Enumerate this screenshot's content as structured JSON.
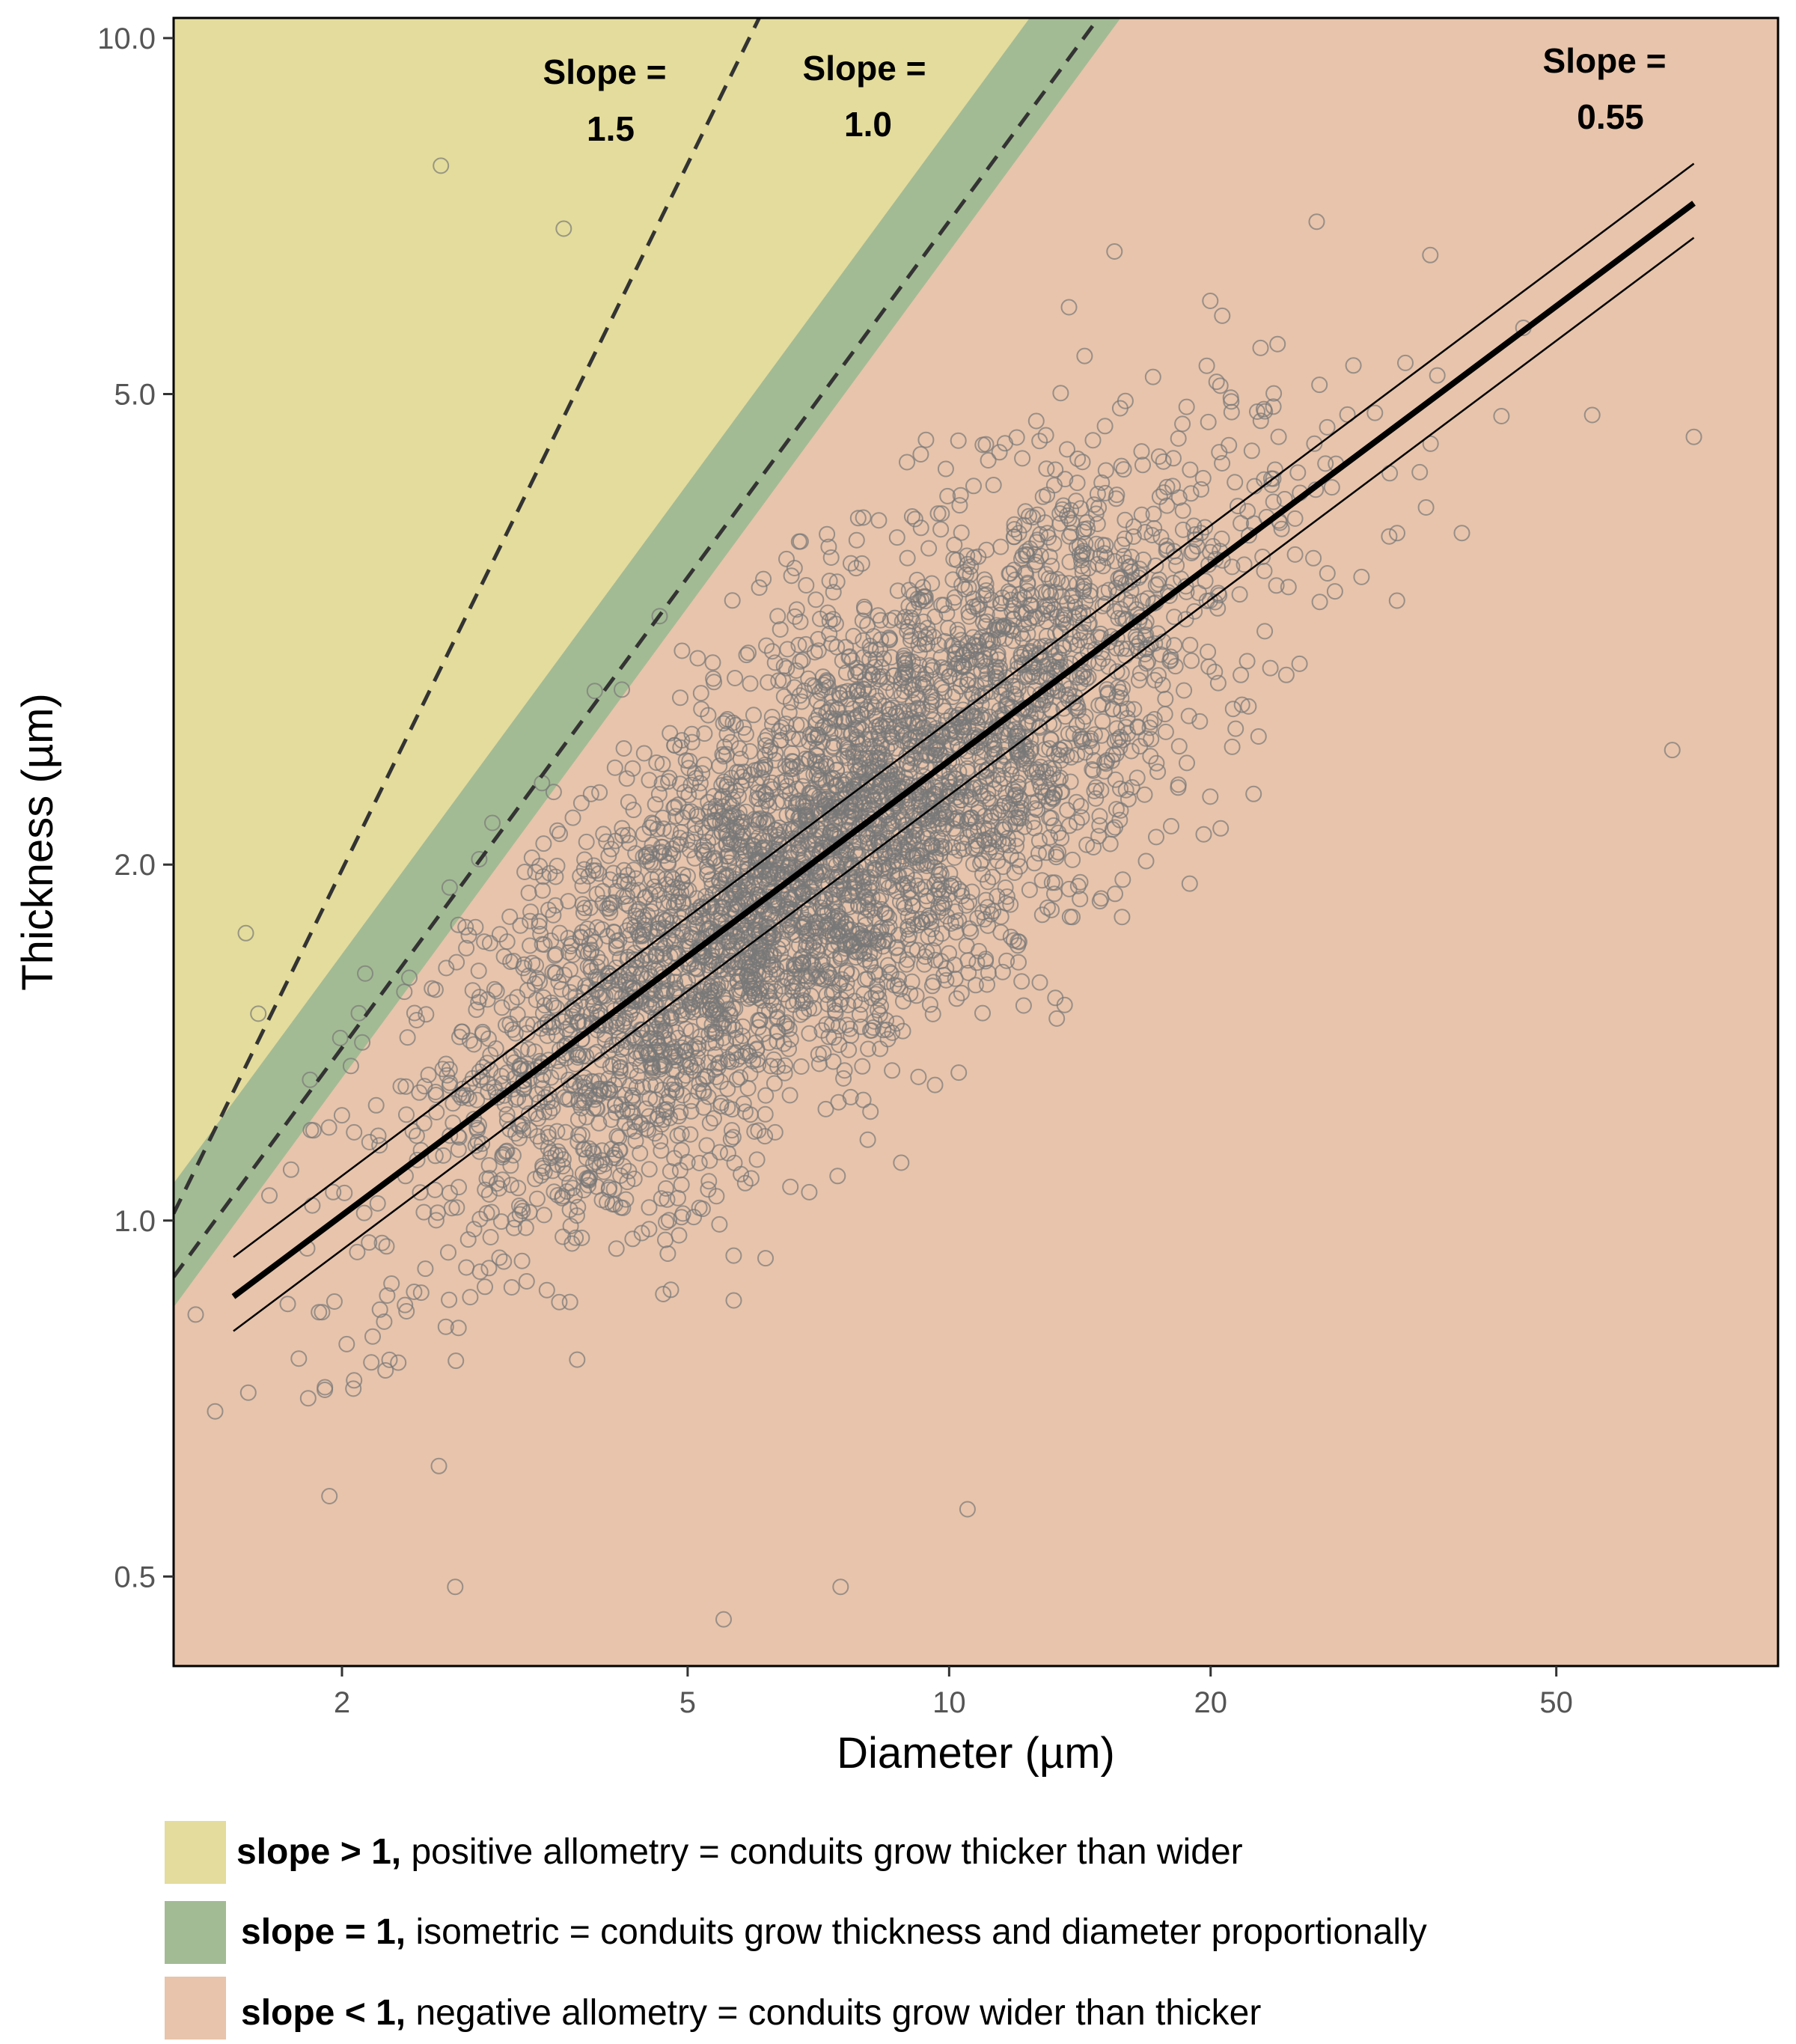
{
  "chart_data": {
    "type": "scatter",
    "xlabel": "Diameter (µm)",
    "ylabel": "Thickness (µm)",
    "x_scale": "log",
    "y_scale": "log",
    "xlim": [
      1.28,
      90
    ],
    "ylim": [
      0.42,
      10.4
    ],
    "x_ticks": [
      2,
      5,
      10,
      20,
      50
    ],
    "x_tick_labels": [
      "2",
      "5",
      "10",
      "20",
      "50"
    ],
    "y_ticks": [
      0.5,
      1.0,
      2.0,
      5.0,
      10.0
    ],
    "y_tick_labels": [
      "0.5",
      "1.0",
      "2.0",
      "5.0",
      "10.0"
    ],
    "grid": false,
    "regions": [
      {
        "key": "positive",
        "color": "#e3dc9c",
        "label_bold": "slope > 1,",
        "label_text": " positive allometry = conduits grow thicker than wider"
      },
      {
        "key": "isometric",
        "color": "#a3bb94",
        "label_bold": "slope = 1,",
        "label_text": " isometric = conduits grow thickness and diameter proportionally"
      },
      {
        "key": "negative",
        "color": "#e7c4ab",
        "label_bold": "slope < 1,",
        "label_text": " negative allometry = conduits grow wider than thicker"
      }
    ],
    "reference_lines": [
      {
        "slope": 1.5,
        "intercept_at_x1": 0.7,
        "style": "dashed",
        "label_line1": "Slope =",
        "label_line2": "1.5"
      },
      {
        "slope": 1.0,
        "intercept_at_x1": 0.7,
        "style": "dashed",
        "label_line1": "Slope =",
        "label_line2": "1.0"
      }
    ],
    "fit_line": {
      "slope": 0.55,
      "intercept_at_x1": 0.69,
      "x_range": [
        1.5,
        72
      ],
      "ci_offset": 0.05,
      "label_line1": "Slope =",
      "label_line2": "0.55"
    },
    "points_summary": {
      "n": 4500,
      "x_log10_center": 0.86,
      "x_log10_sd": 0.22,
      "y_noise_log10_sd": 0.085,
      "marker": "open-circle",
      "color": "#777777"
    },
    "points_sample": [
      {
        "x": 2.6,
        "y": 7.8
      },
      {
        "x": 3.6,
        "y": 6.9
      },
      {
        "x": 15.5,
        "y": 6.6
      },
      {
        "x": 72,
        "y": 4.6
      },
      {
        "x": 55,
        "y": 4.8
      },
      {
        "x": 68,
        "y": 2.5
      },
      {
        "x": 1.55,
        "y": 1.75
      },
      {
        "x": 1.65,
        "y": 1.05
      },
      {
        "x": 7.5,
        "y": 0.49
      },
      {
        "x": 5.5,
        "y": 0.46
      },
      {
        "x": 2.7,
        "y": 0.49
      },
      {
        "x": 10.5,
        "y": 0.57
      }
    ]
  }
}
